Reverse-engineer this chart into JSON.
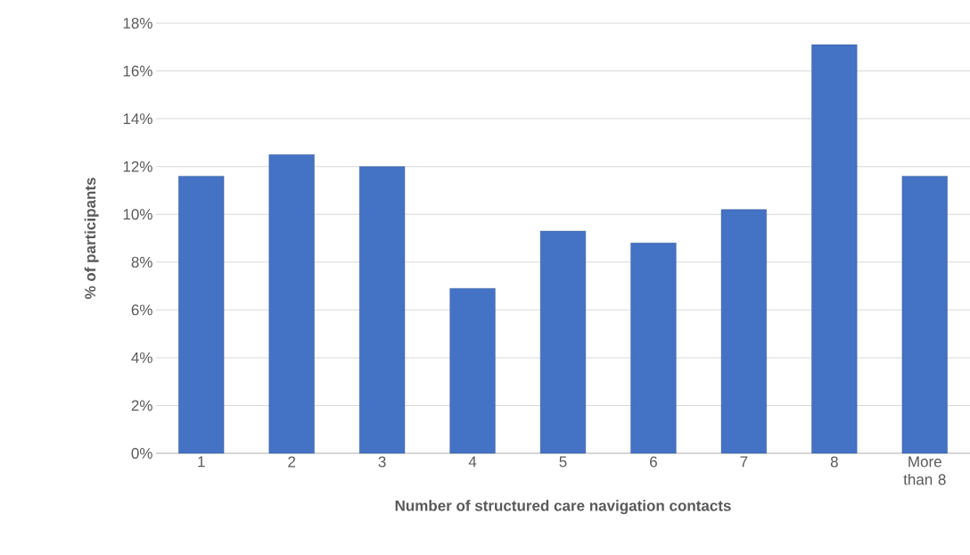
{
  "chart_data": {
    "type": "bar",
    "xlabel": "Number of structured care navigation contacts",
    "ylabel": "% of participants",
    "categories": [
      "1",
      "2",
      "3",
      "4",
      "5",
      "6",
      "7",
      "8",
      "More than 8"
    ],
    "values": [
      11.6,
      12.5,
      12.0,
      6.9,
      9.3,
      8.8,
      10.2,
      17.1,
      11.6
    ],
    "color": "#4472c4",
    "ylim": [
      0,
      18
    ],
    "yticks": [
      {
        "value": 0,
        "label": "0%"
      },
      {
        "value": 2,
        "label": "2%"
      },
      {
        "value": 4,
        "label": "4%"
      },
      {
        "value": 6,
        "label": "6%"
      },
      {
        "value": 8,
        "label": "8%"
      },
      {
        "value": 10,
        "label": "10%"
      },
      {
        "value": 12,
        "label": "12%"
      },
      {
        "value": 14,
        "label": "14%"
      },
      {
        "value": 16,
        "label": "16%"
      },
      {
        "value": 18,
        "label": "18%"
      }
    ],
    "grid": "y"
  }
}
